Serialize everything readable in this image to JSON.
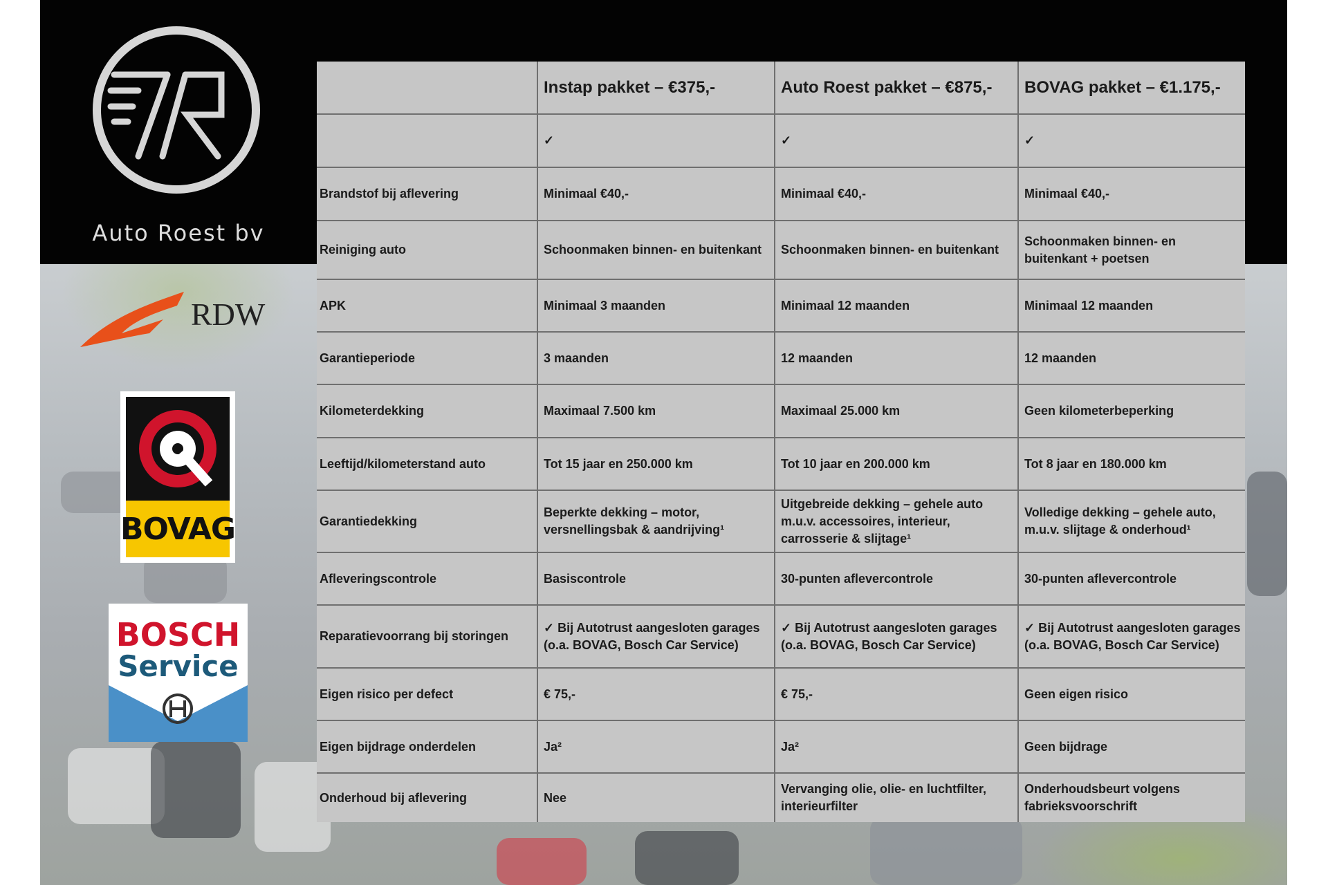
{
  "brand": {
    "name": "Auto Roest bv",
    "logo_text": "AR"
  },
  "badges": {
    "rdw": "RDW",
    "bovag": "BOVAG",
    "bosch_line1": "BOSCH",
    "bosch_line2": "Service"
  },
  "colors": {
    "bovag_yellow": "#f7c600",
    "bovag_red": "#d0142c",
    "bosch_red": "#d0142c",
    "bosch_blue": "#4a90c8",
    "rdw_orange": "#e8501a"
  },
  "table": {
    "headers": [
      "",
      "Instap pakket – €375,-",
      "Auto Roest pakket – €875,-",
      "BOVAG pakket – €1.175,-"
    ],
    "rows": [
      {
        "label": "",
        "values": [
          "✓",
          "✓",
          "✓"
        ]
      },
      {
        "label": "Brandstof bij aflevering",
        "values": [
          "Minimaal €40,-",
          "Minimaal €40,-",
          "Minimaal €40,-"
        ]
      },
      {
        "label": "Reiniging auto",
        "values": [
          "Schoonmaken binnen- en buitenkant",
          "Schoonmaken binnen- en buitenkant",
          "Schoonmaken binnen- en buitenkant + poetsen"
        ]
      },
      {
        "label": "APK",
        "values": [
          "Minimaal 3 maanden",
          "Minimaal 12 maanden",
          "Minimaal 12 maanden"
        ]
      },
      {
        "label": "Garantieperiode",
        "values": [
          "3 maanden",
          "12 maanden",
          "12 maanden"
        ]
      },
      {
        "label": "Kilometerdekking",
        "values": [
          "Maximaal 7.500 km",
          "Maximaal 25.000 km",
          "Geen kilometerbeperking"
        ]
      },
      {
        "label": "Leeftijd/kilometerstand auto",
        "values": [
          "Tot 15 jaar en 250.000 km",
          "Tot 10 jaar en 200.000 km",
          "Tot 8 jaar en 180.000 km"
        ]
      },
      {
        "label": "Garantiedekking",
        "values": [
          "Beperkte dekking – motor, versnellingsbak & aandrijving¹",
          "Uitgebreide dekking – gehele auto m.u.v. accessoires, interieur, carrosserie & slijtage¹",
          "Volledige dekking – gehele auto, m.u.v. slijtage & onderhoud¹"
        ]
      },
      {
        "label": "Afleveringscontrole",
        "values": [
          "Basiscontrole",
          "30-punten aflevercontrole",
          "30-punten aflevercontrole"
        ]
      },
      {
        "label": "Reparatievoorrang bij storingen",
        "values": [
          "✓ Bij Autotrust aangesloten garages (o.a. BOVAG, Bosch Car Service)",
          "✓ Bij Autotrust aangesloten garages (o.a. BOVAG, Bosch Car Service)",
          "✓ Bij Autotrust aangesloten garages (o.a. BOVAG, Bosch Car Service)"
        ]
      },
      {
        "label": "Eigen risico per defect",
        "values": [
          "€ 75,-",
          "€ 75,-",
          "Geen eigen risico"
        ]
      },
      {
        "label": "Eigen bijdrage onderdelen",
        "values": [
          "Ja²",
          "Ja²",
          "Geen bijdrage"
        ]
      },
      {
        "label": "Onderhoud bij aflevering",
        "values": [
          "Nee",
          "Vervanging olie, olie- en luchtfilter, interieurfilter",
          "Onderhoudsbeurt volgens fabrieksvoorschrift"
        ]
      }
    ]
  }
}
